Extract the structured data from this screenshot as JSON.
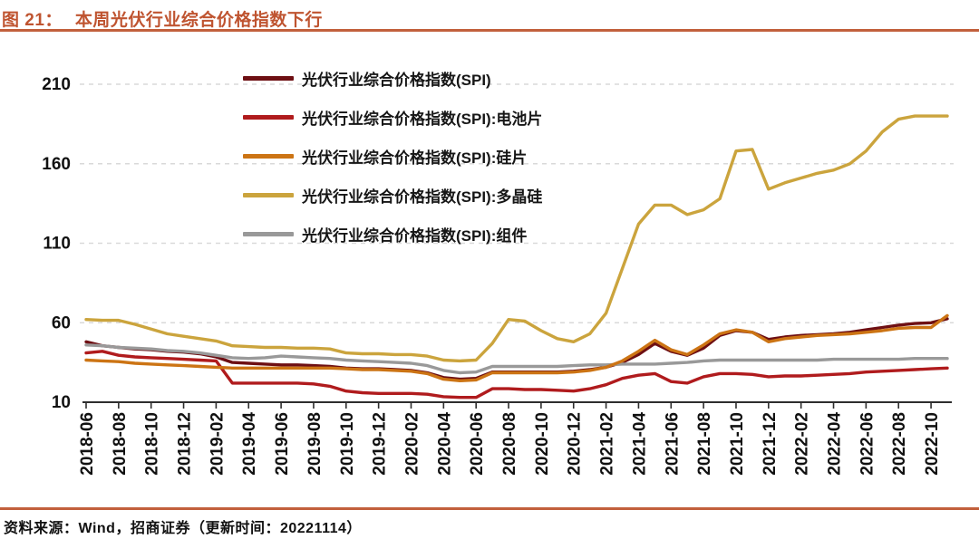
{
  "header": {
    "figure_label": "图 21：",
    "title": "本周光伏行业综合价格指数下行"
  },
  "footer": {
    "source_text": "资料来源：Wind，招商证券（更新时间：20221114）"
  },
  "colors": {
    "title_accent": "#bf5430",
    "rule_accent": "#c2603c",
    "axis": "#2e2e2e",
    "gridline": "#d9d9d9",
    "tick_label": "#111111"
  },
  "chart_data": {
    "type": "line",
    "title": "本周光伏行业综合价格指数下行",
    "frequency": "monthly",
    "start_month": "2018-06",
    "end_month": "2022-11",
    "ylim": [
      10,
      210
    ],
    "y_ticks": [
      10,
      60,
      110,
      160,
      210
    ],
    "gridlines": [
      60,
      110,
      160,
      210
    ],
    "grid_style": "dashed",
    "legend_position": "top-left-inside",
    "x_tick_labels": [
      "2018-06",
      "2018-08",
      "2018-10",
      "2018-12",
      "2019-02",
      "2019-04",
      "2019-06",
      "2019-08",
      "2019-10",
      "2019-12",
      "2020-02",
      "2020-04",
      "2020-06",
      "2020-08",
      "2020-10",
      "2020-12",
      "2021-02",
      "2021-04",
      "2021-06",
      "2021-08",
      "2021-10",
      "2021-12",
      "2022-02",
      "2022-04",
      "2022-06",
      "2022-08",
      "2022-10"
    ],
    "draw_order": [
      0,
      1,
      4,
      2,
      3
    ],
    "series": [
      {
        "name": "光伏行业综合价格指数(SPI)",
        "color": "#6e0f13",
        "values": [
          48,
          45.5,
          44.5,
          43.5,
          43,
          42,
          41.5,
          40.5,
          38.5,
          35,
          34.5,
          34,
          33.5,
          33.5,
          33,
          32.5,
          31.5,
          31,
          31,
          30.5,
          30,
          28.5,
          25.5,
          24.5,
          25,
          29,
          29,
          29,
          29,
          29,
          29.5,
          30.5,
          32,
          35,
          40,
          47,
          42,
          39.5,
          44,
          52,
          55,
          54,
          49.5,
          51,
          52,
          52.5,
          53,
          54,
          55.5,
          57,
          58.5,
          59.5,
          60,
          62.5
        ]
      },
      {
        "name": "光伏行业综合价格指数(SPI):电池片",
        "color": "#b01b1d",
        "values": [
          41,
          42,
          39.5,
          38.5,
          38,
          37.5,
          37,
          36.5,
          36,
          22,
          22,
          22,
          22,
          22,
          21.5,
          20,
          17,
          16,
          15.5,
          15.5,
          15.5,
          15,
          13.5,
          13,
          13,
          18.5,
          18.5,
          18,
          18,
          17.5,
          17,
          18.5,
          21,
          25,
          27,
          28,
          23,
          22,
          26,
          28,
          28,
          27.5,
          26,
          26.5,
          26.5,
          27,
          27.5,
          28,
          29,
          29.5,
          30,
          30.5,
          31,
          31.5
        ]
      },
      {
        "name": "光伏行业综合价格指数(SPI):硅片",
        "color": "#cc7414",
        "values": [
          36.5,
          36,
          35.5,
          34.5,
          34,
          33.5,
          33,
          32.5,
          32,
          31.5,
          31.5,
          31.5,
          31.5,
          31.5,
          31.5,
          31.5,
          31,
          30.5,
          30.5,
          30,
          29.5,
          28,
          24.5,
          23.5,
          24,
          28.5,
          28.5,
          28.5,
          28.5,
          28.5,
          29,
          30,
          32,
          36,
          42,
          49,
          43,
          40,
          46,
          53,
          55.5,
          54,
          48,
          50,
          51,
          52,
          52.5,
          53,
          54,
          55,
          56.5,
          57,
          57,
          64.5
        ]
      },
      {
        "name": "光伏行业综合价格指数(SPI):多晶硅",
        "color": "#cba43d",
        "values": [
          62,
          61.5,
          61.5,
          59,
          56,
          53,
          51.5,
          50,
          48.5,
          45.5,
          45,
          44.5,
          44.5,
          44,
          44,
          43.5,
          41,
          40.5,
          40.5,
          40,
          40,
          39,
          36.5,
          36,
          36.5,
          47,
          62,
          61,
          55,
          50,
          48,
          53,
          66,
          94,
          122,
          134,
          134,
          128,
          131,
          138,
          168,
          169,
          144,
          148,
          151,
          154,
          156,
          160,
          168,
          180,
          188,
          190,
          190,
          190
        ]
      },
      {
        "name": "光伏行业综合价格指数(SPI):组件",
        "color": "#999999",
        "values": [
          46,
          45.5,
          44.5,
          44,
          43.5,
          42.5,
          42,
          41,
          39.5,
          38,
          37.5,
          38,
          39,
          38.5,
          38,
          37.5,
          36.5,
          36,
          35.5,
          35,
          34.5,
          33,
          30,
          28.5,
          29,
          32.5,
          32.5,
          32.5,
          32.5,
          32.5,
          33,
          33.5,
          33.5,
          34,
          34,
          34,
          34.5,
          35,
          36,
          36.5,
          36.5,
          36.5,
          36.5,
          36.5,
          36.5,
          36.5,
          37,
          37,
          37,
          37,
          37,
          37.5,
          37.5,
          37.5
        ]
      }
    ]
  }
}
